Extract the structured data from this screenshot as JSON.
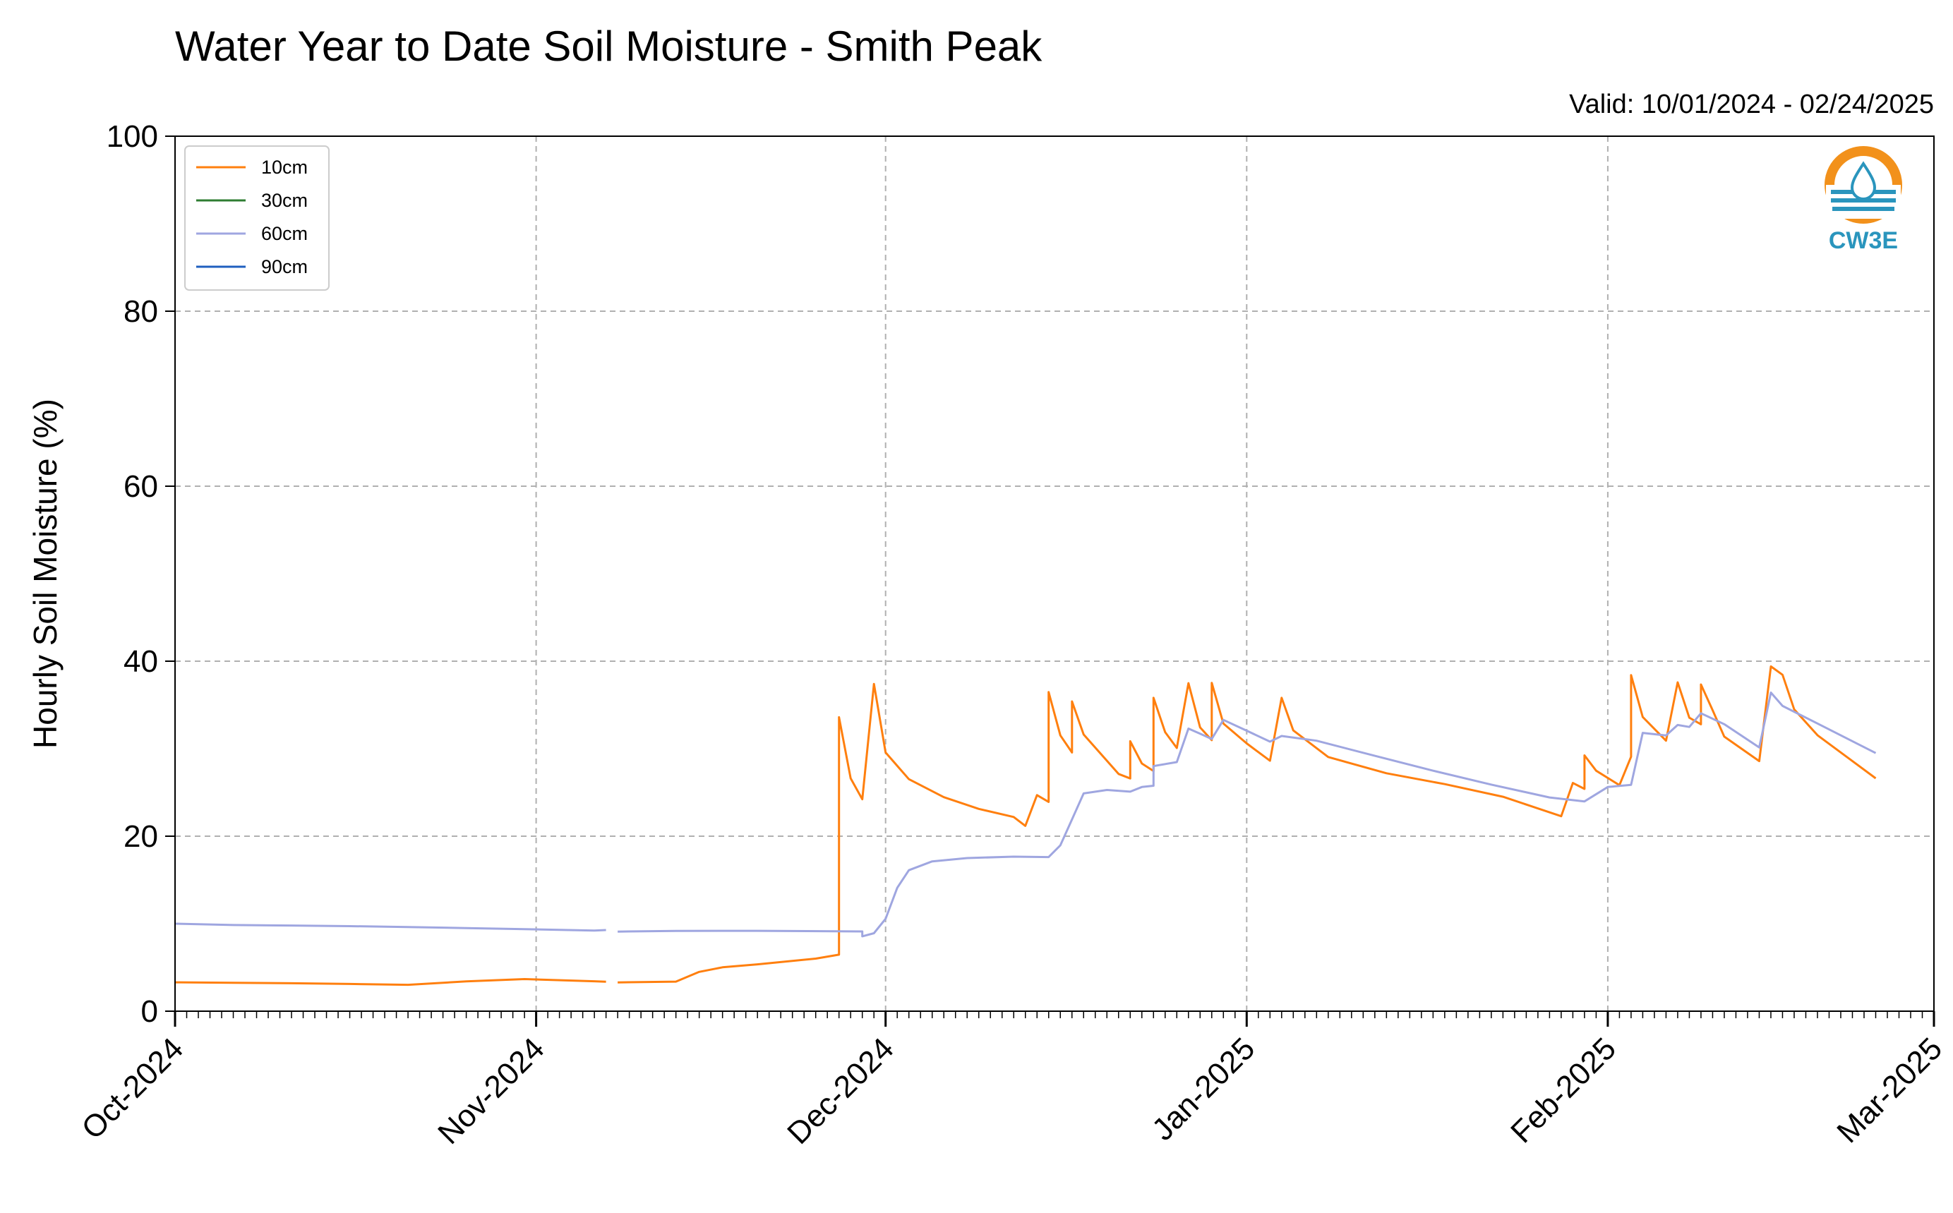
{
  "colors": {
    "series_10cm": "#ff7f0e",
    "series_30cm": "#2e7d32",
    "series_60cm": "#9fa6e0",
    "series_90cm": "#1f5fbf",
    "grid": "#b0b0b0",
    "logo_orange": "#f2911b",
    "logo_blue": "#2a95bd"
  },
  "logo": {
    "text": "CW3E",
    "icon": "water-drop-logo-icon"
  },
  "chart_data": {
    "type": "line",
    "title": "Water Year to Date Soil Moisture - Smith Peak",
    "subtitle": "Valid: 10/01/2024 - 02/24/2025",
    "xlabel": "",
    "ylabel": "Hourly Soil Moisture (%)",
    "ylim": [
      0,
      100
    ],
    "yticks": [
      "0",
      "20",
      "40",
      "60",
      "80",
      "100"
    ],
    "xlim": [
      "2024-10-01",
      "2025-03-01"
    ],
    "xticks": [
      "Oct-2024",
      "Nov-2024",
      "Dec-2024",
      "Jan-2025",
      "Feb-2025",
      "Mar-2025"
    ],
    "grid": true,
    "legend_position": "top-left",
    "series": [
      {
        "name": "10cm",
        "points": [
          [
            "2024-10-01",
            3.3
          ],
          [
            "2024-10-06",
            3.2
          ],
          [
            "2024-10-11",
            3.1
          ],
          [
            "2024-10-16",
            3.0
          ],
          [
            "2024-10-21",
            2.9
          ],
          [
            "2024-10-26",
            3.3
          ],
          [
            "2024-10-31",
            3.6
          ],
          [
            "2024-11-06",
            3.4
          ],
          [
            "2024-11-07",
            3.4
          ],
          [
            "2024-11-07",
            null
          ],
          [
            "2024-11-08",
            3.4
          ],
          [
            "2024-11-13",
            3.5
          ],
          [
            "2024-11-15",
            4.6
          ],
          [
            "2024-11-17",
            5.1
          ],
          [
            "2024-11-20",
            5.4
          ],
          [
            "2024-11-25",
            6.0
          ],
          [
            "2024-11-27",
            6.4
          ],
          [
            "2024-11-27",
            33.5
          ],
          [
            "2024-11-28",
            26.5
          ],
          [
            "2024-11-29",
            24.1
          ],
          [
            "2024-11-30",
            37.3
          ],
          [
            "2024-12-01",
            29.5
          ],
          [
            "2024-12-03",
            26.5
          ],
          [
            "2024-12-06",
            24.5
          ],
          [
            "2024-12-09",
            23.2
          ],
          [
            "2024-12-12",
            22.3
          ],
          [
            "2024-12-13",
            21.3
          ],
          [
            "2024-12-14",
            24.8
          ],
          [
            "2024-12-15",
            24.0
          ],
          [
            "2024-12-15",
            36.5
          ],
          [
            "2024-12-16",
            31.5
          ],
          [
            "2024-12-17",
            29.5
          ],
          [
            "2024-12-17",
            35.3
          ],
          [
            "2024-12-18",
            31.5
          ],
          [
            "2024-12-21",
            27.0
          ],
          [
            "2024-12-22",
            26.5
          ],
          [
            "2024-12-22",
            30.8
          ],
          [
            "2024-12-23",
            28.3
          ],
          [
            "2024-12-24",
            27.5
          ],
          [
            "2024-12-24",
            35.9
          ],
          [
            "2024-12-25",
            32.0
          ],
          [
            "2024-12-26",
            30.2
          ],
          [
            "2024-12-27",
            37.6
          ],
          [
            "2024-12-28",
            32.5
          ],
          [
            "2024-12-29",
            31.0
          ],
          [
            "2024-12-29",
            37.5
          ],
          [
            "2024-12-30",
            32.8
          ],
          [
            "2025-01-01",
            30.5
          ],
          [
            "2025-01-03",
            28.5
          ],
          [
            "2025-01-04",
            35.7
          ],
          [
            "2025-01-05",
            32.0
          ],
          [
            "2025-01-08",
            29.0
          ],
          [
            "2025-01-13",
            27.2
          ],
          [
            "2025-01-18",
            26.0
          ],
          [
            "2025-01-23",
            24.6
          ],
          [
            "2025-01-28",
            22.4
          ],
          [
            "2025-01-29",
            26.2
          ],
          [
            "2025-01-30",
            25.5
          ],
          [
            "2025-01-30",
            29.3
          ],
          [
            "2025-01-31",
            27.5
          ],
          [
            "2025-02-02",
            25.8
          ],
          [
            "2025-02-03",
            29.0
          ],
          [
            "2025-02-03",
            38.3
          ],
          [
            "2025-02-04",
            33.5
          ],
          [
            "2025-02-06",
            30.8
          ],
          [
            "2025-02-07",
            37.5
          ],
          [
            "2025-02-08",
            33.5
          ],
          [
            "2025-02-09",
            32.8
          ],
          [
            "2025-02-09",
            37.4
          ],
          [
            "2025-02-10",
            34.5
          ],
          [
            "2025-02-11",
            31.5
          ],
          [
            "2025-02-14",
            28.7
          ],
          [
            "2025-02-15",
            39.5
          ],
          [
            "2025-02-16",
            38.5
          ],
          [
            "2025-02-17",
            34.5
          ],
          [
            "2025-02-19",
            31.5
          ],
          [
            "2025-02-22",
            28.5
          ],
          [
            "2025-02-24",
            26.5
          ]
        ]
      },
      {
        "name": "30cm",
        "points": []
      },
      {
        "name": "60cm",
        "points": [
          [
            "2024-10-01",
            10.0
          ],
          [
            "2024-10-06",
            9.8
          ],
          [
            "2024-10-11",
            9.7
          ],
          [
            "2024-10-16",
            9.6
          ],
          [
            "2024-10-21",
            9.5
          ],
          [
            "2024-10-26",
            9.4
          ],
          [
            "2024-10-31",
            9.3
          ],
          [
            "2024-11-06",
            9.2
          ],
          [
            "2024-11-07",
            9.3
          ],
          [
            "2024-11-07",
            null
          ],
          [
            "2024-11-08",
            9.2
          ],
          [
            "2024-11-13",
            9.3
          ],
          [
            "2024-11-20",
            9.3
          ],
          [
            "2024-11-29",
            9.2
          ],
          [
            "2024-11-29",
            8.6
          ],
          [
            "2024-11-30",
            8.9
          ],
          [
            "2024-12-01",
            10.5
          ],
          [
            "2024-12-02",
            14.0
          ],
          [
            "2024-12-03",
            16.0
          ],
          [
            "2024-12-05",
            17.0
          ],
          [
            "2024-12-08",
            17.4
          ],
          [
            "2024-12-12",
            17.6
          ],
          [
            "2024-12-15",
            17.6
          ],
          [
            "2024-12-16",
            19.0
          ],
          [
            "2024-12-17",
            22.0
          ],
          [
            "2024-12-18",
            25.0
          ],
          [
            "2024-12-20",
            25.4
          ],
          [
            "2024-12-22",
            25.2
          ],
          [
            "2024-12-23",
            25.7
          ],
          [
            "2024-12-24",
            25.8
          ],
          [
            "2024-12-24",
            28.0
          ],
          [
            "2024-12-26",
            28.4
          ],
          [
            "2024-12-27",
            32.2
          ],
          [
            "2024-12-28",
            31.6
          ],
          [
            "2024-12-29",
            31.0
          ],
          [
            "2024-12-30",
            33.2
          ],
          [
            "2025-01-01",
            32.0
          ],
          [
            "2025-01-03",
            30.8
          ],
          [
            "2025-01-04",
            31.5
          ],
          [
            "2025-01-07",
            31.0
          ],
          [
            "2025-01-12",
            29.3
          ],
          [
            "2025-01-17",
            27.6
          ],
          [
            "2025-01-22",
            26.0
          ],
          [
            "2025-01-27",
            24.5
          ],
          [
            "2025-01-30",
            24.0
          ],
          [
            "2025-02-01",
            25.6
          ],
          [
            "2025-02-03",
            25.8
          ],
          [
            "2025-02-04",
            31.7
          ],
          [
            "2025-02-06",
            31.4
          ],
          [
            "2025-02-07",
            32.6
          ],
          [
            "2025-02-08",
            32.4
          ],
          [
            "2025-02-09",
            34.0
          ],
          [
            "2025-02-11",
            32.8
          ],
          [
            "2025-02-14",
            30.2
          ],
          [
            "2025-02-15",
            36.5
          ],
          [
            "2025-02-16",
            35.0
          ],
          [
            "2025-02-19",
            33.0
          ],
          [
            "2025-02-24",
            29.6
          ]
        ]
      },
      {
        "name": "90cm",
        "points": []
      }
    ]
  }
}
